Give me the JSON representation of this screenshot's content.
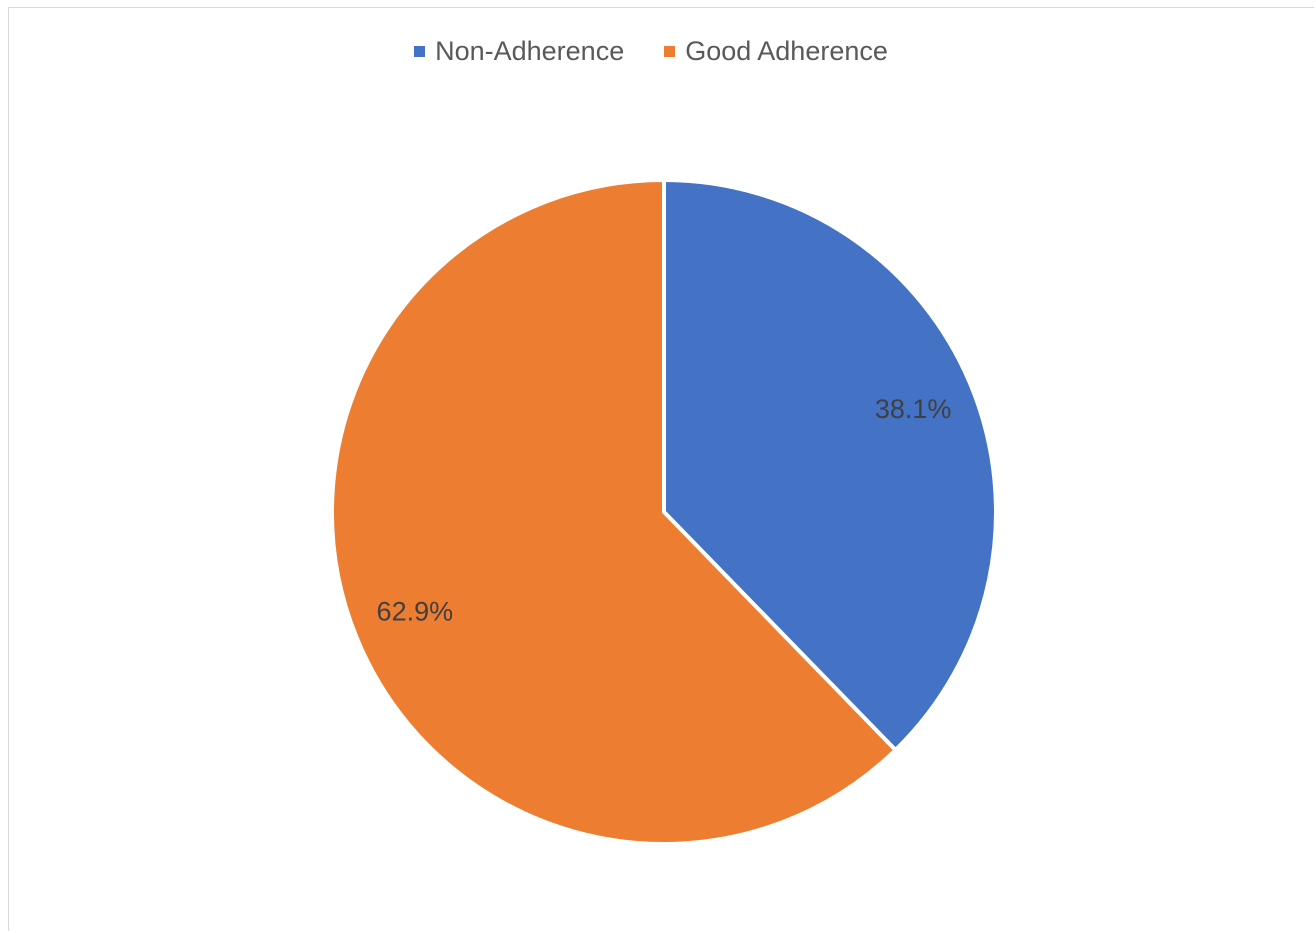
{
  "chart_data": {
    "type": "pie",
    "categories": [
      "Non-Adherence",
      "Good Adherence"
    ],
    "values": [
      38.1,
      62.9
    ],
    "data_labels": [
      "38.1%",
      "62.9%"
    ],
    "colors": [
      "#4472c4",
      "#ed7d31"
    ],
    "title": "",
    "legend_position": "top",
    "start_angle": "12 o'clock, clockwise"
  },
  "legend": {
    "items": [
      {
        "label": "Non-Adherence",
        "color": "#4472c4"
      },
      {
        "label": "Good Adherence",
        "color": "#ed7d31"
      }
    ]
  }
}
